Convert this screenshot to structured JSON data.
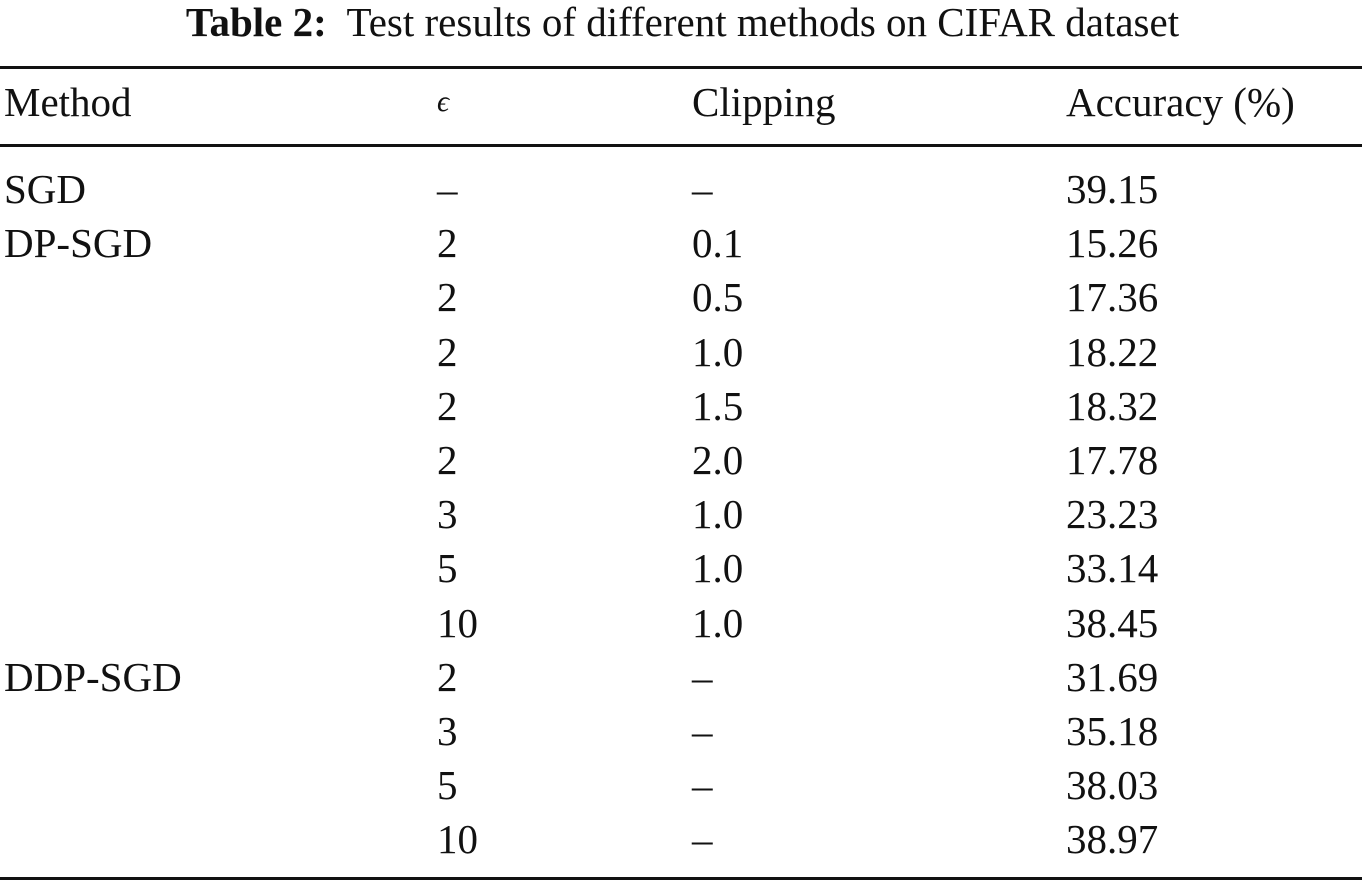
{
  "caption": {
    "label": "Table 2:",
    "text": "Test results of different methods on CIFAR dataset"
  },
  "table": {
    "headers": {
      "method": "Method",
      "epsilon": "ϵ",
      "clipping": "Clipping",
      "accuracy": "Accuracy (%)"
    },
    "rows": [
      {
        "method": "SGD",
        "epsilon": "–",
        "clipping": "–",
        "accuracy": "39.15"
      },
      {
        "method": "DP-SGD",
        "epsilon": "2",
        "clipping": "0.1",
        "accuracy": "15.26"
      },
      {
        "method": "",
        "epsilon": "2",
        "clipping": "0.5",
        "accuracy": "17.36"
      },
      {
        "method": "",
        "epsilon": "2",
        "clipping": "1.0",
        "accuracy": "18.22"
      },
      {
        "method": "",
        "epsilon": "2",
        "clipping": "1.5",
        "accuracy": "18.32"
      },
      {
        "method": "",
        "epsilon": "2",
        "clipping": "2.0",
        "accuracy": "17.78"
      },
      {
        "method": "",
        "epsilon": "3",
        "clipping": "1.0",
        "accuracy": "23.23"
      },
      {
        "method": "",
        "epsilon": "5",
        "clipping": "1.0",
        "accuracy": "33.14"
      },
      {
        "method": "",
        "epsilon": "10",
        "clipping": "1.0",
        "accuracy": "38.45"
      },
      {
        "method": "DDP-SGD",
        "epsilon": "2",
        "clipping": "–",
        "accuracy": "31.69"
      },
      {
        "method": "",
        "epsilon": "3",
        "clipping": "–",
        "accuracy": "35.18"
      },
      {
        "method": "",
        "epsilon": "5",
        "clipping": "–",
        "accuracy": "38.03"
      },
      {
        "method": "",
        "epsilon": "10",
        "clipping": "–",
        "accuracy": "38.97"
      }
    ]
  }
}
